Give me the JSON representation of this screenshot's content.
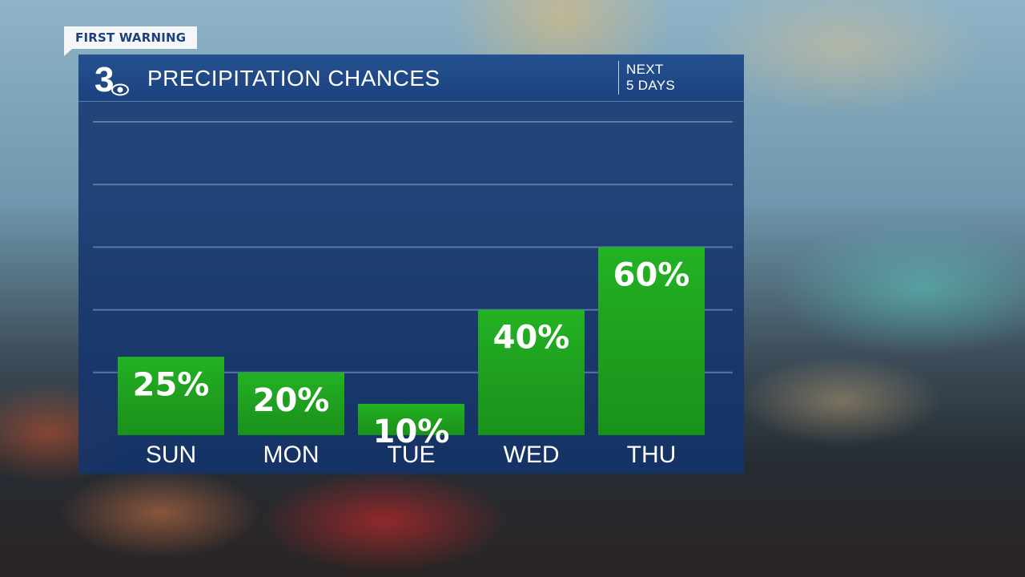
{
  "banner": {
    "label": "FIRST WARNING"
  },
  "header": {
    "logo_text": "3",
    "title": "PRECIPITATION CHANCES",
    "subtitle_line1": "NEXT",
    "subtitle_line2": "5 DAYS"
  },
  "colors": {
    "panel": "#14346e",
    "bar": "#1fa51f",
    "header": "#1f4a88"
  },
  "chart_data": {
    "type": "bar",
    "title": "PRECIPITATION CHANCES",
    "categories": [
      "SUN",
      "MON",
      "TUE",
      "WED",
      "THU"
    ],
    "values": [
      25,
      20,
      10,
      40,
      60
    ],
    "data_labels": [
      "25%",
      "20%",
      "10%",
      "40%",
      "60%"
    ],
    "unit": "%",
    "ylim": [
      0,
      100
    ],
    "grid": true,
    "grid_step": 20
  }
}
